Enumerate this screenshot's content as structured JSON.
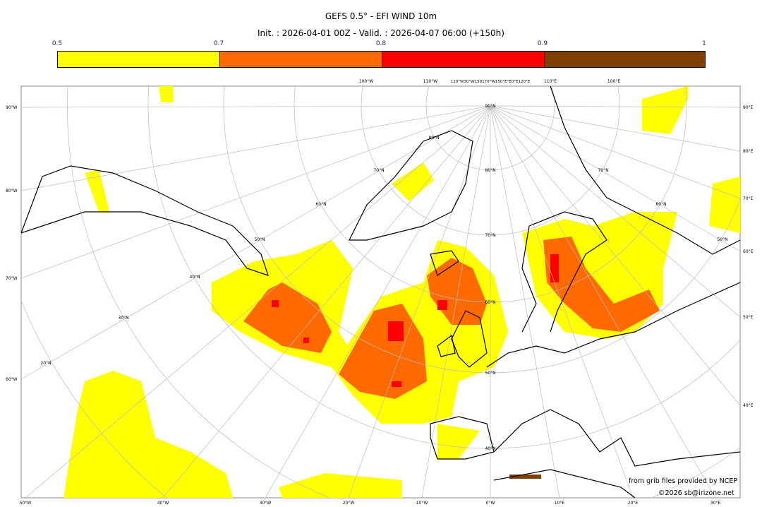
{
  "title": "GEFS 0.5° - EFI WIND 10m",
  "subtitle": "Init. : 2026-04-01 00Z - Valid. : 2026-04-07 06:00 (+150h)",
  "colorbar": {
    "ticks": [
      "0.5",
      "0.7",
      "0.8",
      "0.9",
      "1"
    ],
    "bins": [
      {
        "from": 0.5,
        "to": 0.7,
        "color": "#ffff00"
      },
      {
        "from": 0.7,
        "to": 0.8,
        "color": "#ff6a00"
      },
      {
        "from": 0.8,
        "to": 0.9,
        "color": "#ff0000"
      },
      {
        "from": 0.9,
        "to": 1.0,
        "color": "#7f3f00"
      }
    ]
  },
  "map": {
    "left_labels": [
      "90°W",
      "80°W",
      "70°W",
      "60°W"
    ],
    "right_labels": [
      "90°E",
      "80°E",
      "70°E",
      "60°E",
      "50°E",
      "40°E"
    ],
    "bottom_labels": [
      "50°W",
      "40°W",
      "30°W",
      "20°W",
      "10°W",
      "0°W",
      "10°E",
      "20°E",
      "30°E"
    ],
    "top_labels": [
      "100°W",
      "110°W",
      "120°W30°W150170°W150°E°E0°E120°E",
      "110°E",
      "100°E"
    ],
    "lat_labels": [
      "90°N",
      "80°N",
      "70°N",
      "60°N",
      "50°N",
      "40°N",
      "70°N",
      "60°N",
      "50°N",
      "40°N",
      "30°N",
      "20°N",
      "80°N",
      "70°N",
      "60°N",
      "50°N"
    ]
  },
  "credits": {
    "source": "from grib files provided by NCEP",
    "copyright": "©2026 sb@irizone.net"
  }
}
